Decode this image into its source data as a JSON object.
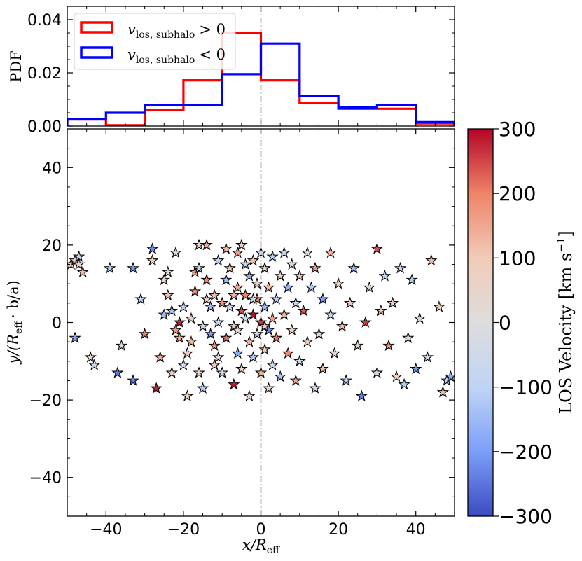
{
  "chart_data": [
    {
      "type": "histogram",
      "panel": "top",
      "ylabel": "PDF",
      "xlim": [
        -50,
        50
      ],
      "ylim": [
        0,
        0.045
      ],
      "yticks": [
        0.0,
        0.02,
        0.04
      ],
      "ytick_labels": [
        "0.00",
        "0.02",
        "0.04"
      ],
      "bin_edges": [
        -50,
        -40,
        -30,
        -20,
        -10,
        0,
        10,
        20,
        30,
        40,
        50
      ],
      "series": [
        {
          "name": "v_los,subhalo > 0",
          "label_main": "v",
          "label_sub": "los, subhalo",
          "label_rel": "> 0",
          "color": "#ff0000",
          "values": [
            0.0025,
            0.0003,
            0.006,
            0.0172,
            0.035,
            0.0172,
            0.0088,
            0.0065,
            0.0065,
            0.001
          ]
        },
        {
          "name": "v_los,subhalo < 0",
          "label_main": "v",
          "label_sub": "los, subhalo",
          "label_rel": "< 0",
          "color": "#0000ff",
          "values": [
            0.0025,
            0.005,
            0.0078,
            0.0078,
            0.0195,
            0.031,
            0.0112,
            0.007,
            0.0078,
            0.0015
          ]
        }
      ],
      "legend_loc": "upper-left",
      "vline": {
        "x": 0,
        "style": "dash-dot"
      }
    },
    {
      "type": "scatter",
      "panel": "main",
      "marker": "star",
      "xlabel": "x/R_eff",
      "xlabel_main": "x/R",
      "xlabel_sub": "eff",
      "ylabel": "y/(R_eff · b/a)",
      "ylabel_main": "y/(R",
      "ylabel_sub": "eff",
      "ylabel_rest": "· b/a)",
      "xlim": [
        -50,
        50
      ],
      "ylim": [
        -50,
        50
      ],
      "xticks": [
        -40,
        -20,
        0,
        20,
        40
      ],
      "xtick_labels": [
        "−40",
        "−20",
        "0",
        "20",
        "40"
      ],
      "yticks": [
        -40,
        -20,
        0,
        20,
        40
      ],
      "ytick_labels": [
        "−40",
        "−20",
        "0",
        "20",
        "40"
      ],
      "vline": {
        "x": 0,
        "style": "dash-dot"
      },
      "colorbar": {
        "label": "LOS Velocity [km s⁻¹]",
        "label_main": "LOS Velocity",
        "label_unit": "[km s",
        "label_exp": "−1",
        "label_close": "]",
        "range": [
          -300,
          300
        ],
        "ticks": [
          -300,
          -200,
          -100,
          0,
          100,
          200,
          300
        ],
        "tick_labels": [
          "−300",
          "−200",
          "−100",
          "0",
          "100",
          "200",
          "300"
        ],
        "colormap": "coolwarm",
        "colormap_stops": [
          "#3b4cc0",
          "#7b9ff9",
          "#c0d4f5",
          "#dddddd",
          "#f2cbb7",
          "#ee8468",
          "#b40426"
        ]
      },
      "points": [
        [
          -49,
          15,
          110
        ],
        [
          -48,
          16,
          70
        ],
        [
          -47,
          17,
          -80
        ],
        [
          -47,
          15,
          60
        ],
        [
          -46,
          13,
          130
        ],
        [
          -48,
          -4,
          -190
        ],
        [
          -44,
          -9,
          40
        ],
        [
          -43,
          -11,
          -60
        ],
        [
          -37,
          -13,
          -250
        ],
        [
          -33,
          -15,
          -230
        ],
        [
          -39,
          14,
          -100
        ],
        [
          -33,
          14,
          -200
        ],
        [
          -28,
          19,
          -220
        ],
        [
          -28,
          16,
          90
        ],
        [
          -27,
          -17,
          280
        ],
        [
          -25,
          11,
          60
        ],
        [
          -24,
          13,
          40
        ],
        [
          -24,
          7,
          110
        ],
        [
          -23,
          3,
          -130
        ],
        [
          -22,
          -2,
          170
        ],
        [
          -21,
          0,
          280
        ],
        [
          -21,
          -4,
          150
        ],
        [
          -20,
          4,
          -110
        ],
        [
          -20,
          -11,
          -40
        ],
        [
          -19,
          -19,
          60
        ],
        [
          -19,
          -8,
          80
        ],
        [
          -18,
          -5,
          130
        ],
        [
          -17,
          13,
          160
        ],
        [
          -17,
          8,
          180
        ],
        [
          -16,
          20,
          40
        ],
        [
          -16,
          14,
          -80
        ],
        [
          -16,
          -13,
          60
        ],
        [
          -15,
          -17,
          -120
        ],
        [
          -14,
          20,
          140
        ],
        [
          -14,
          11,
          200
        ],
        [
          -14,
          6,
          60
        ],
        [
          -13,
          -3,
          -200
        ],
        [
          -13,
          4,
          -150
        ],
        [
          -12,
          -11,
          90
        ],
        [
          -12,
          7,
          120
        ],
        [
          -11,
          16,
          -100
        ],
        [
          -11,
          -9,
          40
        ],
        [
          -10,
          5,
          170
        ],
        [
          -10,
          -13,
          -60
        ],
        [
          -9,
          19,
          120
        ],
        [
          -9,
          11,
          -140
        ],
        [
          -9,
          -4,
          220
        ],
        [
          -8,
          4,
          -70
        ],
        [
          -8,
          14,
          100
        ],
        [
          -7,
          -16,
          280
        ],
        [
          -7,
          -1,
          90
        ],
        [
          -6,
          9,
          150
        ],
        [
          -6,
          18,
          160
        ],
        [
          -6,
          -8,
          -180
        ],
        [
          -5,
          20,
          70
        ],
        [
          -5,
          3,
          240
        ],
        [
          -5,
          -12,
          60
        ],
        [
          -4,
          15,
          -90
        ],
        [
          -4,
          7,
          200
        ],
        [
          -4,
          1,
          -60
        ],
        [
          -3,
          -5,
          130
        ],
        [
          -3,
          12,
          -170
        ],
        [
          -3,
          -19,
          40
        ],
        [
          -2,
          2,
          290
        ],
        [
          -2,
          16,
          110
        ],
        [
          -2,
          -9,
          -120
        ],
        [
          -1,
          6,
          180
        ],
        [
          -1,
          -3,
          -40
        ],
        [
          -1,
          10,
          50
        ],
        [
          0,
          0,
          260
        ],
        [
          0,
          -13,
          140
        ],
        [
          0,
          18,
          -60
        ],
        [
          1,
          4,
          -150
        ],
        [
          1,
          -7,
          90
        ],
        [
          1,
          14,
          30
        ],
        [
          2,
          -2,
          -210
        ],
        [
          2,
          9,
          120
        ],
        [
          2,
          -17,
          60
        ],
        [
          3,
          1,
          160
        ],
        [
          3,
          17,
          -110
        ],
        [
          3,
          -11,
          -40
        ],
        [
          4,
          6,
          -90
        ],
        [
          4,
          -4,
          210
        ],
        [
          5,
          12,
          70
        ],
        [
          5,
          -14,
          -130
        ],
        [
          6,
          2,
          130
        ],
        [
          6,
          18,
          -80
        ],
        [
          7,
          -8,
          190
        ],
        [
          7,
          9,
          -160
        ],
        [
          8,
          15,
          40
        ],
        [
          8,
          -2,
          80
        ],
        [
          9,
          5,
          -70
        ],
        [
          9,
          -15,
          150
        ],
        [
          10,
          12,
          100
        ],
        [
          10,
          -10,
          -50
        ],
        [
          11,
          3,
          230
        ],
        [
          12,
          18,
          -30
        ],
        [
          12,
          -5,
          90
        ],
        [
          13,
          9,
          -120
        ],
        [
          14,
          -17,
          -60
        ],
        [
          14,
          14,
          170
        ],
        [
          15,
          -3,
          60
        ],
        [
          16,
          6,
          -190
        ],
        [
          16,
          -12,
          110
        ],
        [
          18,
          18,
          130
        ],
        [
          18,
          2,
          -80
        ],
        [
          19,
          -8,
          40
        ],
        [
          20,
          10,
          70
        ],
        [
          21,
          -1,
          120
        ],
        [
          22,
          -15,
          -100
        ],
        [
          23,
          5,
          90
        ],
        [
          24,
          14,
          -150
        ],
        [
          25,
          -6,
          60
        ],
        [
          26,
          -19,
          -240
        ],
        [
          27,
          0,
          260
        ],
        [
          28,
          9,
          40
        ],
        [
          30,
          -13,
          -40
        ],
        [
          30,
          19,
          240
        ],
        [
          31,
          3,
          110
        ],
        [
          32,
          12,
          -90
        ],
        [
          33,
          -6,
          180
        ],
        [
          34,
          5,
          60
        ],
        [
          35,
          -14,
          70
        ],
        [
          36,
          14,
          -80
        ],
        [
          37,
          -16,
          -110
        ],
        [
          38,
          -4,
          30
        ],
        [
          39,
          11,
          -120
        ],
        [
          40,
          -12,
          -200
        ],
        [
          41,
          1,
          60
        ],
        [
          43,
          -9,
          -50
        ],
        [
          47,
          -18,
          120
        ],
        [
          48,
          -15,
          -100
        ],
        [
          49,
          -14,
          -180
        ],
        [
          46,
          4,
          90
        ],
        [
          44,
          16,
          130
        ],
        [
          -36,
          -6,
          30
        ],
        [
          -31,
          6,
          -110
        ],
        [
          -30,
          -3,
          200
        ],
        [
          -26,
          -9,
          150
        ],
        [
          -25,
          2,
          -140
        ],
        [
          -23,
          -13,
          80
        ],
        [
          -22,
          18,
          -30
        ],
        [
          -18,
          1,
          60
        ],
        [
          -15,
          -1,
          -60
        ],
        [
          -12,
          -6,
          180
        ],
        [
          -11,
          0,
          -90
        ],
        [
          -7,
          7,
          130
        ],
        [
          -6,
          -2,
          40
        ],
        [
          -2,
          6,
          -50
        ],
        [
          1,
          -1,
          70
        ]
      ]
    }
  ]
}
